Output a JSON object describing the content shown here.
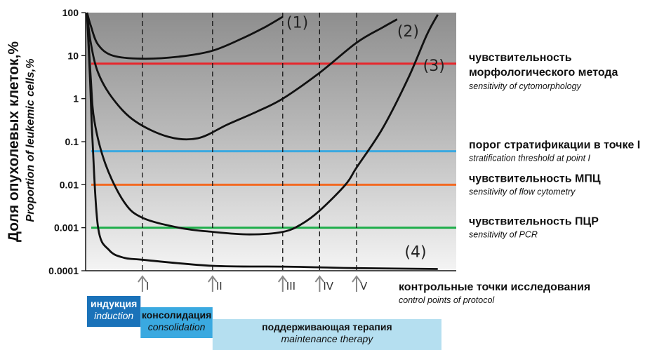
{
  "chart_data": {
    "type": "line",
    "ylabel_ru": "Доля опухолевых клеток,%",
    "ylabel_en": "Proportion of leukemic cells,%",
    "yscale": "log",
    "ylim": [
      0.0001,
      100
    ],
    "yticks": [
      {
        "value": 100,
        "label": "100"
      },
      {
        "value": 10,
        "label": "10"
      },
      {
        "value": 1,
        "label": "1"
      },
      {
        "value": 0.1,
        "label": "0.1"
      },
      {
        "value": 0.01,
        "label": "0.01"
      },
      {
        "value": 0.001,
        "label": "0.001"
      },
      {
        "value": 0.0001,
        "label": "0.0001"
      }
    ],
    "xlim": [
      0,
      10
    ],
    "control_points": [
      {
        "label": "I",
        "x": 1.5
      },
      {
        "label": "II",
        "x": 3.4
      },
      {
        "label": "III",
        "x": 5.3
      },
      {
        "label": "IV",
        "x": 6.3
      },
      {
        "label": "V",
        "x": 7.3
      }
    ],
    "thresholds": [
      {
        "value": 6.5,
        "color": "#e8262b",
        "label_ru": "чувствительность морфологического метода",
        "label_en": "sensitivity of cytomorphology"
      },
      {
        "value": 0.06,
        "color": "#3aa9e0",
        "label_ru": "порог стратификации в точке I",
        "label_en": "stratification threshold at point I"
      },
      {
        "value": 0.01,
        "color": "#f26a22",
        "label_ru": "чувствительность МПЦ",
        "label_en": "sensitivity of flow cytometry"
      },
      {
        "value": 0.001,
        "color": "#1fae4b",
        "label_ru": "чувствительность ПЦР",
        "label_en": "sensitivity of PCR"
      }
    ],
    "series": [
      {
        "name": "(1)",
        "points": [
          [
            0,
            100
          ],
          [
            0.1,
            50
          ],
          [
            0.3,
            18
          ],
          [
            0.7,
            10
          ],
          [
            1.5,
            8.5
          ],
          [
            2.5,
            9.5
          ],
          [
            3.4,
            13
          ],
          [
            4.2,
            25
          ],
          [
            4.8,
            45
          ],
          [
            5.3,
            80
          ]
        ]
      },
      {
        "name": "(2)",
        "points": [
          [
            0,
            100
          ],
          [
            0.1,
            20
          ],
          [
            0.3,
            4
          ],
          [
            0.7,
            1
          ],
          [
            1.3,
            0.3
          ],
          [
            2.2,
            0.13
          ],
          [
            3.0,
            0.12
          ],
          [
            3.8,
            0.25
          ],
          [
            4.6,
            0.5
          ],
          [
            5.3,
            1
          ],
          [
            6.3,
            4
          ],
          [
            7.3,
            20
          ],
          [
            8.0,
            45
          ],
          [
            8.4,
            70
          ]
        ]
      },
      {
        "name": "(3)",
        "points": [
          [
            0,
            100
          ],
          [
            0.1,
            3
          ],
          [
            0.2,
            0.3
          ],
          [
            0.5,
            0.03
          ],
          [
            1.0,
            0.004
          ],
          [
            1.5,
            0.0017
          ],
          [
            2.5,
            0.001
          ],
          [
            3.4,
            0.0008
          ],
          [
            4.4,
            0.0007
          ],
          [
            5.3,
            0.0008
          ],
          [
            5.8,
            0.0012
          ],
          [
            6.3,
            0.0025
          ],
          [
            7.0,
            0.01
          ],
          [
            7.3,
            0.025
          ],
          [
            8.0,
            0.2
          ],
          [
            8.7,
            3
          ],
          [
            9.2,
            30
          ],
          [
            9.5,
            90
          ]
        ]
      },
      {
        "name": "(4)",
        "points": [
          [
            0,
            100
          ],
          [
            0.08,
            3
          ],
          [
            0.15,
            0.1
          ],
          [
            0.3,
            0.001
          ],
          [
            0.6,
            0.0003
          ],
          [
            1.0,
            0.0002
          ],
          [
            1.5,
            0.00018
          ],
          [
            3.4,
            0.00013
          ],
          [
            5.3,
            0.000125
          ],
          [
            6.3,
            0.00012
          ],
          [
            7.3,
            0.000115
          ],
          [
            9.5,
            0.00011
          ]
        ]
      }
    ],
    "series_label_values": [
      {
        "text": "(1)",
        "x": 5.4,
        "y": 60
      },
      {
        "text": "(2)",
        "x": 8.4,
        "y": 38
      },
      {
        "text": "(3)",
        "x": 9.1,
        "y": 6
      },
      {
        "text": "(4)",
        "x": 8.6,
        "y": 0.00028
      }
    ],
    "control_points_caption_ru": "контрольные точки исследования",
    "control_points_caption_en": "control points of protocol",
    "phases": [
      {
        "label_ru": "индукция",
        "label_en": "induction",
        "color": "#1a72b9",
        "text_color": "#ffffff",
        "x_start": 0,
        "x_end": 1.45
      },
      {
        "label_ru": "консолидация",
        "label_en": "consolidation",
        "color": "#3aa9e0",
        "text_color": "#111111",
        "x_start": 1.45,
        "x_end": 3.4
      },
      {
        "label_ru": "поддерживающая терапия",
        "label_en": "maintenance therapy",
        "color": "#b5dff0",
        "text_color": "#111111",
        "x_start": 3.4,
        "x_end": 9.6
      }
    ],
    "legend": "none"
  }
}
